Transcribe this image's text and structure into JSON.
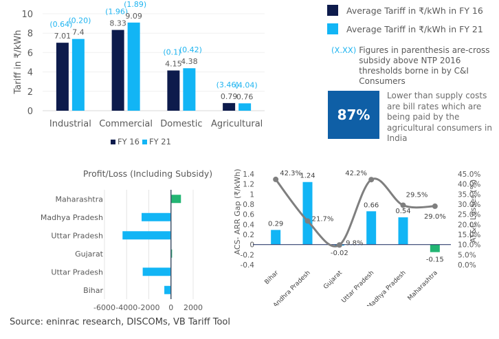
{
  "chart_data": [
    {
      "type": "bar",
      "title": "",
      "ylabel": "Tariff in ₹/kWh",
      "xlabel": "",
      "ylim": [
        0,
        10
      ],
      "yticks": [
        0,
        2,
        4,
        6,
        8,
        10
      ],
      "categories": [
        "Industrial",
        "Commercial",
        "Domestic",
        "Agricultural"
      ],
      "series": [
        {
          "name": "FY 16",
          "color": "#0d1b4c",
          "values": [
            7.01,
            8.33,
            4.15,
            0.79
          ],
          "labels": [
            "7.01",
            "8.33",
            "4.15",
            "0.79"
          ],
          "cross_subsidy": [
            "(0.64)",
            "(1.96)",
            "(0.1)",
            "(3.46)"
          ]
        },
        {
          "name": "FY 21",
          "color": "#12b5f5",
          "values": [
            7.4,
            9.09,
            4.38,
            0.76
          ],
          "labels": [
            "7.4",
            "9.09",
            "4.38",
            "0.76"
          ],
          "cross_subsidy": [
            "(0.20)",
            "(1.89)",
            "(0.42)",
            "(4.04)"
          ]
        }
      ],
      "legend_position": "bottom",
      "grid": true
    },
    {
      "type": "bar",
      "orientation": "horizontal",
      "title": "Profit/Loss (Including Subsidy)",
      "categories": [
        "Maharashtra",
        "Madhya Pradesh",
        "Uttar Pradesh",
        "Gujarat",
        "Uttar Pradesh",
        "Bihar"
      ],
      "values": [
        900,
        -2650,
        -4370,
        100,
        -2550,
        -600
      ],
      "colors": [
        "#22b573",
        "#12b5f5",
        "#12b5f5",
        "#22b573",
        "#12b5f5",
        "#12b5f5"
      ],
      "xlim": [
        -6000,
        2000
      ],
      "xticks": [
        -6000,
        -4000,
        -2000,
        0,
        2000
      ],
      "grid": true
    },
    {
      "type": "bar+line",
      "categories": [
        "Bihar",
        "Andhra Pradesh",
        "Gujarat",
        "Uttar Pradesh",
        "Madhya Pradesh",
        "Maharashtra"
      ],
      "series": [
        {
          "name": "ACS-ARR Gap",
          "axis": "left",
          "type": "bar",
          "values": [
            0.29,
            1.24,
            -0.02,
            0.66,
            0.54,
            -0.15
          ],
          "labels": [
            "0.29",
            "1.24",
            "-0.02",
            "0.66",
            "0.54",
            "-0.15"
          ],
          "colors": [
            "#12b5f5",
            "#12b5f5",
            "#12b5f5",
            "#12b5f5",
            "#12b5f5",
            "#22b573"
          ]
        },
        {
          "name": "AT&C Losses",
          "axis": "right",
          "type": "line",
          "color": "#7f7f7f",
          "values": [
            42.3,
            21.7,
            9.8,
            42.2,
            29.5,
            29.0
          ],
          "labels": [
            "42.3%",
            "21.7%",
            "9.8%",
            "42.2%",
            "29.5%",
            "29.0%"
          ]
        }
      ],
      "ylabel": "ACS- ARR Gap (₹/kWh)",
      "ylim": [
        -0.4,
        1.4
      ],
      "yticks": [
        "1.4",
        "1.2",
        "1",
        "0.8",
        "0.6",
        "0.4",
        "0.2",
        "0",
        "-0.2",
        "-0.4"
      ],
      "y2label": "AT&C Losses (%)",
      "y2lim": [
        0,
        45
      ],
      "y2ticks": [
        "45.0%",
        "40.0%",
        "35.0%",
        "30.0%",
        "25.0%",
        "20.0%",
        "15.0%",
        "10.0%",
        "5.0%",
        "0.0%"
      ]
    }
  ],
  "legend": {
    "fy16_label": "Average Tariff in ₹/kWh in FY 16",
    "fy21_label": "Average Tariff in ₹/kWh in FY 21",
    "fy16_color": "#0d1b4c",
    "fy21_color": "#12b5f5"
  },
  "note": {
    "code": "(X.XX)",
    "text": "Figures in parenthesis are-cross subsidy above NTP 2016 thresholds borne in by C&I Consumers"
  },
  "kpi": {
    "value": "87%",
    "text": "Lower than supply costs are bill rates which are being paid by the agricultural consumers in India",
    "color": "#0f5fa6"
  },
  "source": "Source: eninrac research, DISCOMs, VB Tariff Tool"
}
